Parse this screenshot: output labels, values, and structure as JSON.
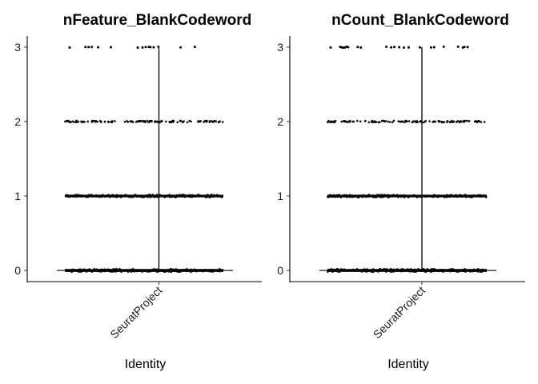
{
  "chart_data": [
    {
      "type": "violin",
      "title": "nFeature_BlankCodeword",
      "xlabel": "Identity",
      "ylabel": "",
      "categories": [
        "SeuratProject"
      ],
      "yticks": [
        0,
        1,
        2,
        3
      ],
      "ylim": [
        -0.15,
        3.15
      ],
      "levels": [
        0,
        1,
        2,
        3
      ],
      "level_density": [
        "very dense",
        "very dense",
        "dense",
        "sparse"
      ],
      "max_value": 3,
      "grid": false,
      "legend": "none"
    },
    {
      "type": "violin",
      "title": "nCount_BlankCodeword",
      "xlabel": "Identity",
      "ylabel": "",
      "categories": [
        "SeuratProject"
      ],
      "yticks": [
        0,
        1,
        2,
        3
      ],
      "ylim": [
        -0.15,
        3.15
      ],
      "levels": [
        0,
        1,
        2,
        3
      ],
      "level_density": [
        "very dense",
        "very dense",
        "dense",
        "sparse"
      ],
      "max_value": 3,
      "grid": false,
      "legend": "none"
    }
  ],
  "colors": {
    "points": "#000000",
    "axis": "#000000",
    "background": "#ffffff"
  }
}
